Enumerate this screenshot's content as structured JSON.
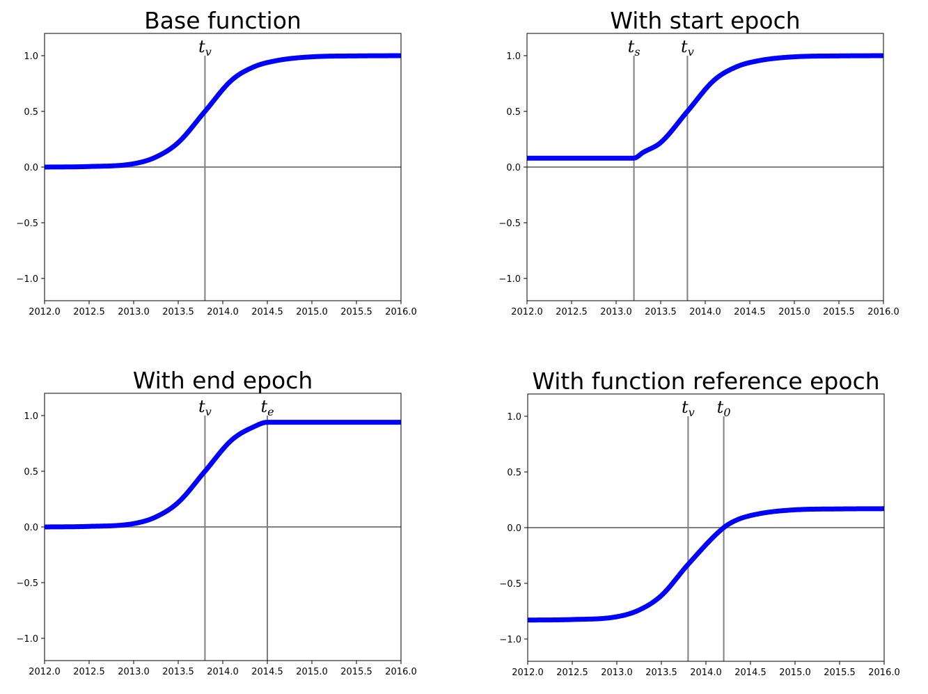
{
  "chart_data": [
    {
      "type": "line",
      "title": "Base function",
      "xlabel": "",
      "ylabel": "",
      "xlim": [
        2012.0,
        2016.0
      ],
      "ylim": [
        -1.2,
        1.2
      ],
      "x_ticks": [
        "2012.0",
        "2012.5",
        "2013.0",
        "2013.5",
        "2014.0",
        "2014.5",
        "2015.0",
        "2015.5",
        "2016.0"
      ],
      "y_ticks": [
        "−1.0",
        "−0.5",
        "0.0",
        "0.5",
        "1.0"
      ],
      "grid": false,
      "series": [
        {
          "color": "#0000ff",
          "x": [
            2012.0,
            2012.5,
            2013.0,
            2013.25,
            2013.5,
            2013.8,
            2014.1,
            2014.35,
            2014.6,
            2015.0,
            2015.5,
            2016.0
          ],
          "y": [
            0.0,
            0.005,
            0.03,
            0.09,
            0.22,
            0.5,
            0.78,
            0.9,
            0.955,
            0.99,
            0.998,
            1.0
          ]
        }
      ],
      "markers": [
        {
          "x": 2013.8,
          "label": "t",
          "sub": "v"
        }
      ]
    },
    {
      "type": "line",
      "title": "With start epoch",
      "xlabel": "",
      "ylabel": "",
      "xlim": [
        2012.0,
        2016.0
      ],
      "ylim": [
        -1.2,
        1.2
      ],
      "x_ticks": [
        "2012.0",
        "2012.5",
        "2013.0",
        "2013.5",
        "2014.0",
        "2014.5",
        "2015.0",
        "2015.5",
        "2016.0"
      ],
      "y_ticks": [
        "−1.0",
        "−0.5",
        "0.0",
        "0.5",
        "1.0"
      ],
      "grid": false,
      "series": [
        {
          "color": "#0000ff",
          "x": [
            2012.0,
            2012.5,
            2013.0,
            2013.2,
            2013.3,
            2013.5,
            2013.8,
            2014.1,
            2014.35,
            2014.6,
            2015.0,
            2015.5,
            2016.0
          ],
          "y": [
            0.08,
            0.08,
            0.08,
            0.08,
            0.13,
            0.22,
            0.5,
            0.78,
            0.9,
            0.955,
            0.99,
            0.998,
            1.0
          ]
        }
      ],
      "markers": [
        {
          "x": 2013.2,
          "label": "t",
          "sub": "s"
        },
        {
          "x": 2013.8,
          "label": "t",
          "sub": "v"
        }
      ]
    },
    {
      "type": "line",
      "title": "With end epoch",
      "xlabel": "",
      "ylabel": "",
      "xlim": [
        2012.0,
        2016.0
      ],
      "ylim": [
        -1.2,
        1.2
      ],
      "x_ticks": [
        "2012.0",
        "2012.5",
        "2013.0",
        "2013.5",
        "2014.0",
        "2014.5",
        "2015.0",
        "2015.5",
        "2016.0"
      ],
      "y_ticks": [
        "−1.0",
        "−0.5",
        "0.0",
        "0.5",
        "1.0"
      ],
      "grid": false,
      "series": [
        {
          "color": "#0000ff",
          "x": [
            2012.0,
            2012.5,
            2013.0,
            2013.25,
            2013.5,
            2013.8,
            2014.1,
            2014.35,
            2014.5,
            2015.0,
            2015.5,
            2016.0
          ],
          "y": [
            0.0,
            0.005,
            0.03,
            0.09,
            0.22,
            0.5,
            0.78,
            0.9,
            0.94,
            0.94,
            0.94,
            0.94
          ]
        }
      ],
      "markers": [
        {
          "x": 2013.8,
          "label": "t",
          "sub": "v"
        },
        {
          "x": 2014.5,
          "label": "t",
          "sub": "e"
        }
      ]
    },
    {
      "type": "line",
      "title": "With function reference epoch",
      "xlabel": "",
      "ylabel": "",
      "xlim": [
        2012.0,
        2016.0
      ],
      "ylim": [
        -1.2,
        1.2
      ],
      "x_ticks": [
        "2012.0",
        "2012.5",
        "2013.0",
        "2013.5",
        "2014.0",
        "2014.5",
        "2015.0",
        "2015.5",
        "2016.0"
      ],
      "y_ticks": [
        "−1.0",
        "−0.5",
        "0.0",
        "0.5",
        "1.0"
      ],
      "grid": false,
      "series": [
        {
          "color": "#0000ff",
          "x": [
            2012.0,
            2012.5,
            2013.0,
            2013.25,
            2013.5,
            2013.8,
            2014.2,
            2014.35,
            2014.6,
            2015.0,
            2015.5,
            2016.0
          ],
          "y": [
            -0.83,
            -0.825,
            -0.8,
            -0.74,
            -0.61,
            -0.33,
            0.0,
            0.07,
            0.125,
            0.16,
            0.168,
            0.17
          ]
        }
      ],
      "markers": [
        {
          "x": 2013.8,
          "label": "t",
          "sub": "v"
        },
        {
          "x": 2014.2,
          "label": "t",
          "sub": "0"
        }
      ]
    }
  ]
}
